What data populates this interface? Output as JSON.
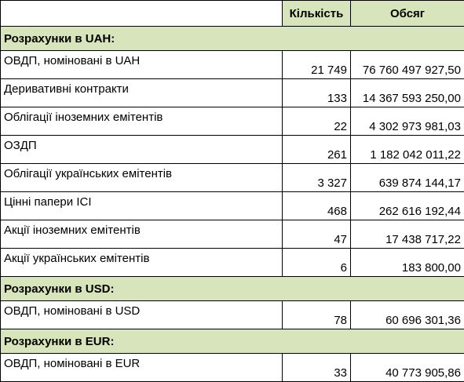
{
  "headers": {
    "count": "Кількість",
    "volume": "Обсяг"
  },
  "sections": [
    {
      "title": "Розрахунки в UAH:",
      "rows": [
        {
          "name": "ОВДП, номіновані в UAH",
          "count": "21 749",
          "volume": "76 760 497 927,50"
        },
        {
          "name": "Деривативні контракти",
          "count": "133",
          "volume": "14 367 593 250,00"
        },
        {
          "name": "Облігації іноземних емітентів",
          "count": "22",
          "volume": "4 302 973 981,03"
        },
        {
          "name": "ОЗДП",
          "count": "261",
          "volume": "1 182 042 011,22"
        },
        {
          "name": "Облігації українських емітентів",
          "count": "3 327",
          "volume": "639 874 144,17"
        },
        {
          "name": "Цінні папери ІСІ",
          "count": "468",
          "volume": "262 616 192,44"
        },
        {
          "name": "Акції іноземних емітентів",
          "count": "47",
          "volume": "17 438 717,22"
        },
        {
          "name": "Акції українських емітентів",
          "count": "6",
          "volume": "183 800,00"
        }
      ]
    },
    {
      "title": "Розрахунки в USD:",
      "rows": [
        {
          "name": "ОВДП, номіновані в USD",
          "count": "78",
          "volume": "60 696 301,36"
        }
      ]
    },
    {
      "title": "Розрахунки в EUR:",
      "rows": [
        {
          "name": "ОВДП, номіновані в EUR",
          "count": "33",
          "volume": "40 773 905,86"
        }
      ]
    }
  ]
}
